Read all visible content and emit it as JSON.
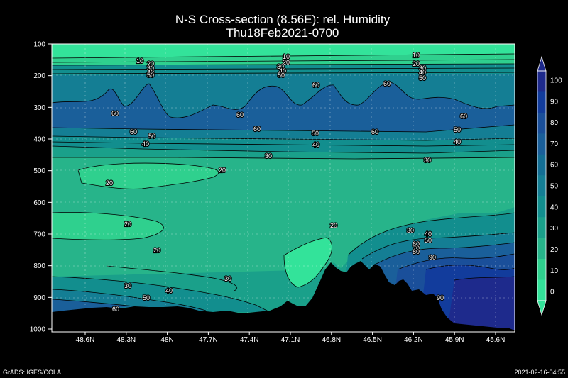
{
  "chart_data": {
    "type": "heatmap",
    "title": "N-S Cross-section (8.56E): rel. Humidity",
    "subtitle": "Thu18Feb2021-0700",
    "x_ticks": [
      "48.6N",
      "48.3N",
      "48N",
      "47.7N",
      "47.4N",
      "47.1N",
      "46.8N",
      "46.5N",
      "46.2N",
      "45.9N",
      "45.6N"
    ],
    "y_ticks": [
      "100",
      "200",
      "300",
      "400",
      "500",
      "600",
      "700",
      "800",
      "900",
      "1000"
    ],
    "ylim": [
      1000,
      100
    ],
    "grid": true,
    "colorbar": {
      "ticks": [
        "100",
        "90",
        "80",
        "70",
        "60",
        "50",
        "40",
        "30",
        "20",
        "10",
        "0"
      ],
      "colors": [
        "#1e2a8c",
        "#123c9c",
        "#1a4f9a",
        "#1a5f9a",
        "#136e94",
        "#147e94",
        "#128e8e",
        "#1aa08a",
        "#27b48a",
        "#2fd08e",
        "#33e39a"
      ]
    },
    "contour_labels": [
      {
        "t": "10",
        "p": 1
      },
      {
        "t": "20",
        "p": 2
      },
      {
        "t": "30",
        "p": 3
      },
      {
        "t": "40",
        "p": 4
      },
      {
        "t": "50",
        "p": 5
      },
      {
        "t": "10",
        "p": 6
      },
      {
        "t": "20",
        "p": 7
      },
      {
        "t": "30",
        "p": 8
      },
      {
        "t": "40",
        "p": 9
      },
      {
        "t": "50",
        "p": 10
      },
      {
        "t": "10",
        "p": 11
      },
      {
        "t": "20",
        "p": 12
      },
      {
        "t": "30",
        "p": 13
      },
      {
        "t": "40",
        "p": 14
      },
      {
        "t": "50",
        "p": 15
      },
      {
        "t": "60",
        "p": 16
      },
      {
        "t": "60",
        "p": 17
      },
      {
        "t": "60",
        "p": 18
      },
      {
        "t": "60",
        "p": 19
      },
      {
        "t": "60",
        "p": 20
      },
      {
        "t": "60",
        "p": 21
      },
      {
        "t": "60",
        "p": 22
      },
      {
        "t": "60",
        "p": 23
      },
      {
        "t": "50",
        "p": 24
      },
      {
        "t": "50",
        "p": 25
      },
      {
        "t": "50",
        "p": 26
      },
      {
        "t": "40",
        "p": 27
      },
      {
        "t": "40",
        "p": 28
      },
      {
        "t": "40",
        "p": 29
      },
      {
        "t": "30",
        "p": 30
      },
      {
        "t": "30",
        "p": 31
      },
      {
        "t": "20",
        "p": 32
      },
      {
        "t": "20",
        "p": 33
      },
      {
        "t": "20",
        "p": 34
      },
      {
        "t": "20",
        "p": 35
      },
      {
        "t": "20",
        "p": 36
      },
      {
        "t": "30",
        "p": 37
      },
      {
        "t": "40",
        "p": 38
      },
      {
        "t": "50",
        "p": 39
      },
      {
        "t": "60",
        "p": 40
      },
      {
        "t": "70",
        "p": 41
      },
      {
        "t": "80",
        "p": 42
      },
      {
        "t": "90",
        "p": 43
      },
      {
        "t": "30",
        "p": 44
      },
      {
        "t": "30",
        "p": 45
      },
      {
        "t": "40",
        "p": 46
      },
      {
        "t": "50",
        "p": 47
      },
      {
        "t": "60",
        "p": 48
      },
      {
        "t": "90",
        "p": 49
      }
    ]
  },
  "footer": {
    "left": "GrADS: IGES/COLA",
    "right": "2021-02-16-04:55"
  }
}
